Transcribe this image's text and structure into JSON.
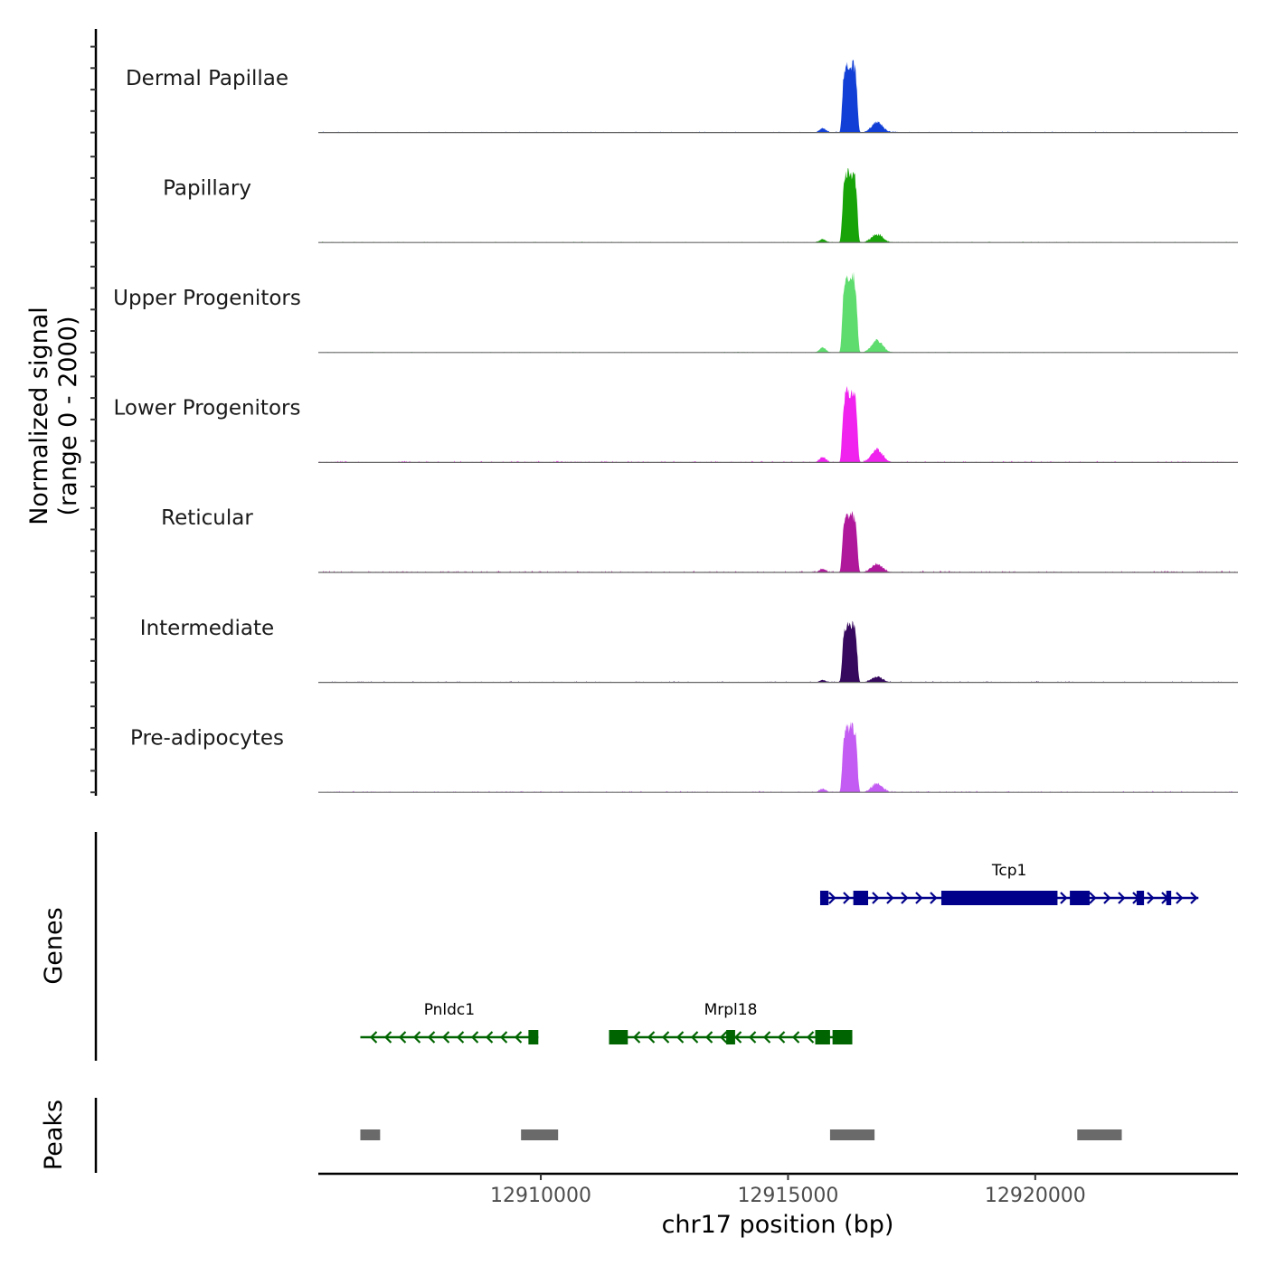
{
  "chart_data": {
    "type": "area",
    "title": "",
    "chromosome": "chr17",
    "xlabel": "chr17 position (bp)",
    "ylabel": "Normalized signal",
    "ylabel_range": "(range 0 - 2000)",
    "xlim": [
      12905500,
      12924100
    ],
    "ylim": [
      0,
      2000
    ],
    "x_ticks": [
      12910000,
      12915000,
      12920000
    ],
    "x_tick_labels": [
      "12910000",
      "12915000",
      "12920000"
    ],
    "tracks": [
      {
        "name": "Dermal Papillae",
        "color": "#1240d6",
        "peak_max": 1750,
        "shoulder": 280,
        "background": 25
      },
      {
        "name": "Papillary",
        "color": "#18a408",
        "peak_max": 1750,
        "shoulder": 220,
        "background": 20
      },
      {
        "name": "Upper Progenitors",
        "color": "#5edc6e",
        "peak_max": 1900,
        "shoulder": 320,
        "background": 20
      },
      {
        "name": "Lower Progenitors",
        "color": "#f022ee",
        "peak_max": 1800,
        "shoulder": 340,
        "background": 40
      },
      {
        "name": "Reticular",
        "color": "#b0189c",
        "peak_max": 1450,
        "shoulder": 230,
        "background": 40
      },
      {
        "name": "Intermediate",
        "color": "#36085e",
        "peak_max": 1450,
        "shoulder": 150,
        "background": 30
      },
      {
        "name": "Pre-adipocytes",
        "color": "#c35cf2",
        "peak_max": 1650,
        "shoulder": 220,
        "background": 35
      }
    ],
    "signal_peaks": [
      {
        "center": 12916250,
        "width": 260
      },
      {
        "center": 12916800,
        "width": 160
      }
    ],
    "genes_label": "Genes",
    "genes": [
      {
        "name": "Tcp1",
        "start": 12915650,
        "end": 12923300,
        "strand": "+",
        "color": "#00008b",
        "row": 1,
        "exons": [
          [
            12915650,
            12915820
          ],
          [
            12916320,
            12916620
          ],
          [
            12918100,
            12920450
          ],
          [
            12920700,
            12921100
          ],
          [
            12922050,
            12922200
          ],
          [
            12922650,
            12922750
          ]
        ]
      },
      {
        "name": "Pnldc1",
        "start": 12906350,
        "end": 12909950,
        "strand": "-",
        "color": "#006400",
        "row": 2,
        "exons": [
          [
            12909750,
            12909950
          ]
        ]
      },
      {
        "name": "Mrpl18",
        "start": 12911380,
        "end": 12916300,
        "strand": "-",
        "color": "#006400",
        "row": 2,
        "exons": [
          [
            12911380,
            12911760
          ],
          [
            12913750,
            12913930
          ],
          [
            12915550,
            12915850
          ],
          [
            12915900,
            12916300
          ]
        ]
      }
    ],
    "peaks_label": "Peaks",
    "peaks": [
      {
        "start": 12906350,
        "end": 12906750
      },
      {
        "start": 12909600,
        "end": 12910350
      },
      {
        "start": 12915850,
        "end": 12916750
      },
      {
        "start": 12920850,
        "end": 12921750
      }
    ]
  }
}
